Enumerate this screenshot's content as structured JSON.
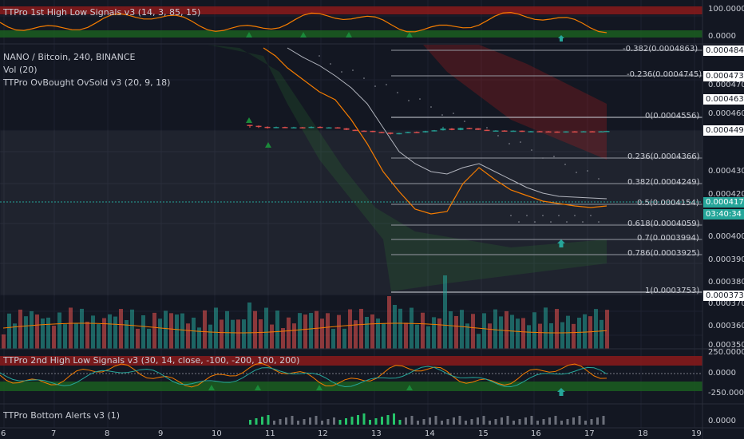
{
  "pane_titles": {
    "top": "TTPro 1st High Low Signals v3 (14, 3, 85, 15)",
    "symbol": "NANO / Bitcoin, 240, BINANCE",
    "vol": "Vol (20)",
    "obos": "TTPro OvBought OvSold v3 (20, 9, 18)",
    "second": "TTPro 2nd High Low Signals v3 (30, 14, close, -100, -200, 100, 200)",
    "bottom": "TTPro Bottom Alerts v3 (1)"
  },
  "price_axis": {
    "top_pane": [
      "100.0000",
      "0.0000"
    ],
    "main": [
      "0.0004700",
      "0.0004600",
      "0.0004300",
      "0.0004200",
      "0.0004000",
      "0.0003900",
      "0.0003800",
      "0.0003700",
      "0.0003600",
      "0.0003500"
    ],
    "second_pane": [
      "250.0000",
      "0.0000",
      "-250.0000"
    ],
    "bottom_pane": [
      "0.0000"
    ]
  },
  "price_tags": [
    {
      "value": "0.0004843",
      "bg": "#ffffff",
      "fg": "#131722"
    },
    {
      "value": "0.0004737",
      "bg": "#ffffff",
      "fg": "#131722"
    },
    {
      "value": "0.0004636",
      "bg": "#ffffff",
      "fg": "#131722"
    },
    {
      "value": "0.0004493",
      "bg": "#ffffff",
      "fg": "#131722"
    },
    {
      "value": "0.0004171",
      "bg": "#26a69a",
      "fg": "#ffffff"
    },
    {
      "value": "03:40:34",
      "bg": "#26a69a",
      "fg": "#ffffff"
    },
    {
      "value": "0.0003738",
      "bg": "#ffffff",
      "fg": "#131722"
    }
  ],
  "fib_levels": [
    {
      "label": "-0.382(0.0004863)"
    },
    {
      "label": "-0.236(0.0004745)"
    },
    {
      "label": "0(0.0004556)"
    },
    {
      "label": "0.236(0.0004366)"
    },
    {
      "label": "0.382(0.0004249)"
    },
    {
      "label": "0.5(0.0004154)"
    },
    {
      "label": "0.618(0.0004059)"
    },
    {
      "label": "0.7(0.0003994)"
    },
    {
      "label": "0.786(0.0003925)"
    },
    {
      "label": "1(0.0003753)"
    }
  ],
  "time_axis": [
    "6",
    "7",
    "8",
    "9",
    "10",
    "11",
    "12",
    "13",
    "14",
    "15",
    "16",
    "17",
    "18",
    "19"
  ],
  "colors": {
    "background": "#131722",
    "up": "#26a69a",
    "down": "#ef5350",
    "fast_ma": "#f57c00",
    "slow_ma": "#b2b5be",
    "grid": "#1e2230"
  }
}
